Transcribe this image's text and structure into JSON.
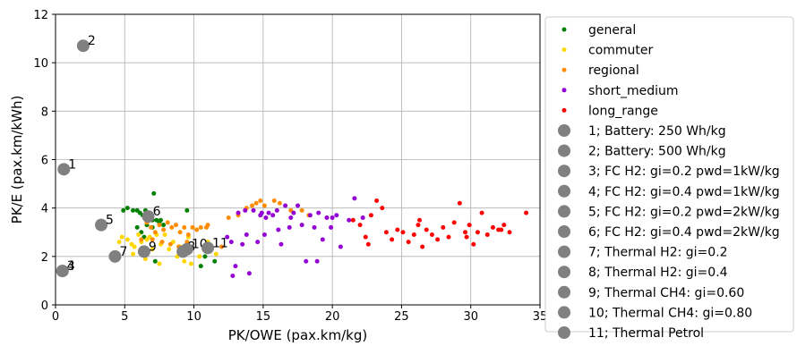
{
  "chart_data": {
    "type": "scatter",
    "xlabel": "PK/OWE (pax.km/kg)",
    "ylabel": "PK/E (pax.km/kWh)",
    "xlim": [
      0,
      35
    ],
    "ylim": [
      0,
      12
    ],
    "x_ticks": [
      "0",
      "5",
      "10",
      "15",
      "20",
      "25",
      "30",
      "35"
    ],
    "y_ticks": [
      "0",
      "2",
      "4",
      "6",
      "8",
      "10",
      "12"
    ],
    "grid": true,
    "legend_position": "right",
    "series": [
      {
        "name": "general",
        "color": "#008000",
        "points": [
          [
            4.9,
            3.9
          ],
          [
            5.2,
            4.0
          ],
          [
            5.6,
            3.9
          ],
          [
            5.9,
            3.9
          ],
          [
            6.1,
            3.8
          ],
          [
            6.3,
            3.7
          ],
          [
            6.5,
            3.9
          ],
          [
            6.8,
            3.6
          ],
          [
            7.0,
            3.5
          ],
          [
            7.1,
            4.6
          ],
          [
            7.3,
            3.5
          ],
          [
            7.5,
            3.4
          ],
          [
            7.6,
            3.5
          ],
          [
            7.8,
            3.3
          ],
          [
            6.2,
            3.0
          ],
          [
            6.4,
            2.8
          ],
          [
            6.6,
            3.3
          ],
          [
            7.0,
            3.2
          ],
          [
            9.5,
            3.9
          ],
          [
            9.0,
            2.2
          ],
          [
            10.5,
            1.6
          ],
          [
            11.5,
            1.8
          ],
          [
            6.3,
            2.1
          ],
          [
            7.2,
            1.8
          ],
          [
            10.8,
            2.0
          ],
          [
            5.9,
            3.2
          ]
        ]
      },
      {
        "name": "commuter",
        "color": "#ffd700",
        "points": [
          [
            4.6,
            2.6
          ],
          [
            4.8,
            2.8
          ],
          [
            5.2,
            2.7
          ],
          [
            5.5,
            2.5
          ],
          [
            5.7,
            2.4
          ],
          [
            6.0,
            2.9
          ],
          [
            6.2,
            2.6
          ],
          [
            6.4,
            2.3
          ],
          [
            6.6,
            2.7
          ],
          [
            6.8,
            2.8
          ],
          [
            7.0,
            2.3
          ],
          [
            7.3,
            2.9
          ],
          [
            7.6,
            2.5
          ],
          [
            7.9,
            2.9
          ],
          [
            8.2,
            2.3
          ],
          [
            8.5,
            2.6
          ],
          [
            8.8,
            2.0
          ],
          [
            9.0,
            2.4
          ],
          [
            9.3,
            1.8
          ],
          [
            9.8,
            1.7
          ],
          [
            10.4,
            2.0
          ],
          [
            11.0,
            2.6
          ],
          [
            11.2,
            2.3
          ],
          [
            11.6,
            2.1
          ],
          [
            6.5,
            1.9
          ],
          [
            7.5,
            1.7
          ],
          [
            5.6,
            2.1
          ],
          [
            9.6,
            2.8
          ]
        ]
      },
      {
        "name": "regional",
        "color": "#ff8c00",
        "points": [
          [
            6.6,
            3.4
          ],
          [
            6.9,
            3.2
          ],
          [
            7.2,
            3.0
          ],
          [
            7.5,
            3.3
          ],
          [
            7.8,
            3.1
          ],
          [
            8.1,
            3.4
          ],
          [
            8.4,
            3.2
          ],
          [
            8.7,
            3.3
          ],
          [
            9.0,
            3.0
          ],
          [
            9.3,
            3.2
          ],
          [
            9.6,
            2.9
          ],
          [
            9.9,
            3.2
          ],
          [
            10.2,
            3.1
          ],
          [
            10.5,
            3.2
          ],
          [
            11.0,
            3.3
          ],
          [
            7.0,
            2.7
          ],
          [
            7.7,
            2.6
          ],
          [
            8.3,
            2.5
          ],
          [
            8.9,
            2.4
          ],
          [
            9.5,
            2.6
          ],
          [
            12.5,
            3.6
          ],
          [
            13.2,
            3.7
          ],
          [
            13.8,
            4.0
          ],
          [
            14.2,
            4.1
          ],
          [
            14.5,
            4.2
          ],
          [
            14.8,
            4.3
          ],
          [
            15.1,
            4.1
          ],
          [
            15.8,
            4.3
          ],
          [
            16.2,
            4.2
          ],
          [
            17.0,
            3.9
          ],
          [
            17.8,
            3.9
          ],
          [
            18.3,
            3.7
          ],
          [
            10.9,
            3.2
          ],
          [
            12.0,
            2.4
          ],
          [
            6.2,
            2.7
          ]
        ]
      },
      {
        "name": "short_medium",
        "color": "#9400d3",
        "points": [
          [
            12.4,
            2.8
          ],
          [
            12.7,
            2.6
          ],
          [
            13.0,
            1.6
          ],
          [
            13.2,
            3.8
          ],
          [
            13.5,
            2.5
          ],
          [
            13.8,
            2.9
          ],
          [
            14.0,
            1.3
          ],
          [
            14.3,
            3.9
          ],
          [
            14.6,
            2.6
          ],
          [
            14.8,
            3.7
          ],
          [
            15.1,
            2.9
          ],
          [
            15.4,
            3.8
          ],
          [
            15.7,
            3.7
          ],
          [
            16.0,
            3.9
          ],
          [
            16.3,
            2.5
          ],
          [
            16.6,
            4.1
          ],
          [
            16.9,
            3.2
          ],
          [
            17.2,
            3.8
          ],
          [
            17.5,
            4.1
          ],
          [
            17.8,
            3.3
          ],
          [
            18.1,
            1.8
          ],
          [
            18.4,
            3.7
          ],
          [
            18.7,
            3.2
          ],
          [
            19.0,
            3.8
          ],
          [
            19.3,
            2.7
          ],
          [
            19.6,
            3.6
          ],
          [
            19.9,
            3.2
          ],
          [
            20.3,
            3.7
          ],
          [
            20.6,
            2.4
          ],
          [
            21.2,
            3.5
          ],
          [
            21.6,
            4.4
          ],
          [
            22.2,
            3.6
          ],
          [
            12.8,
            1.2
          ],
          [
            15.2,
            3.6
          ],
          [
            17.0,
            3.6
          ],
          [
            18.9,
            1.8
          ],
          [
            16.1,
            3.1
          ],
          [
            14.9,
            3.8
          ],
          [
            13.7,
            3.9
          ],
          [
            20.0,
            3.6
          ]
        ]
      },
      {
        "name": "long_range",
        "color": "#ff0000",
        "points": [
          [
            21.5,
            3.5
          ],
          [
            22.0,
            3.3
          ],
          [
            22.4,
            2.8
          ],
          [
            22.8,
            3.7
          ],
          [
            23.2,
            4.3
          ],
          [
            23.6,
            4.0
          ],
          [
            23.9,
            3.0
          ],
          [
            24.3,
            2.7
          ],
          [
            24.7,
            3.1
          ],
          [
            25.1,
            3.0
          ],
          [
            25.5,
            2.6
          ],
          [
            25.9,
            2.9
          ],
          [
            26.3,
            3.5
          ],
          [
            26.5,
            2.4
          ],
          [
            26.8,
            3.1
          ],
          [
            27.2,
            2.9
          ],
          [
            27.6,
            2.7
          ],
          [
            28.0,
            3.2
          ],
          [
            28.4,
            2.8
          ],
          [
            28.8,
            3.4
          ],
          [
            29.2,
            4.2
          ],
          [
            29.6,
            3.0
          ],
          [
            29.9,
            3.3
          ],
          [
            30.2,
            2.5
          ],
          [
            30.5,
            3.0
          ],
          [
            30.8,
            3.8
          ],
          [
            31.2,
            2.9
          ],
          [
            31.6,
            3.2
          ],
          [
            32.0,
            3.1
          ],
          [
            32.4,
            3.3
          ],
          [
            32.8,
            3.0
          ],
          [
            34.0,
            3.8
          ],
          [
            22.6,
            2.5
          ],
          [
            26.2,
            3.3
          ],
          [
            29.7,
            2.8
          ],
          [
            32.2,
            3.1
          ]
        ]
      }
    ],
    "labeled_points": [
      {
        "label": "1",
        "legend": "1; Battery: 250 Wh/kg",
        "x": 0.6,
        "y": 5.6
      },
      {
        "label": "2",
        "legend": "2; Battery: 500 Wh/kg",
        "x": 2.0,
        "y": 10.7
      },
      {
        "label": "3",
        "legend": "3; FC H2: gi=0.2 pwd=1kW/kg",
        "x": 0.5,
        "y": 1.4
      },
      {
        "label": "4",
        "legend": "4; FC H2: gi=0.4 pwd=1kW/kg",
        "x": 0.5,
        "y": 1.4
      },
      {
        "label": "5",
        "legend": "5; FC H2: gi=0.2 pwd=2kW/kg",
        "x": 3.3,
        "y": 3.3
      },
      {
        "label": "6",
        "legend": "6; FC H2: gi=0.4 pwd=2kW/kg",
        "x": 6.7,
        "y": 3.65
      },
      {
        "label": "7",
        "legend": "7; Thermal H2: gi=0.2",
        "x": 4.3,
        "y": 2.0
      },
      {
        "label": "8",
        "legend": "8; Thermal H2: gi=0.4",
        "x": 9.2,
        "y": 2.2
      },
      {
        "label": "9",
        "legend": "9; Thermal CH4: gi=0.60",
        "x": 6.4,
        "y": 2.2
      },
      {
        "label": "10",
        "legend": "10; Thermal CH4: gi=0.80",
        "x": 9.5,
        "y": 2.3
      },
      {
        "label": "11",
        "legend": "11; Thermal Petrol",
        "x": 11.0,
        "y": 2.35
      }
    ],
    "labeled_point_color": "#808080"
  }
}
